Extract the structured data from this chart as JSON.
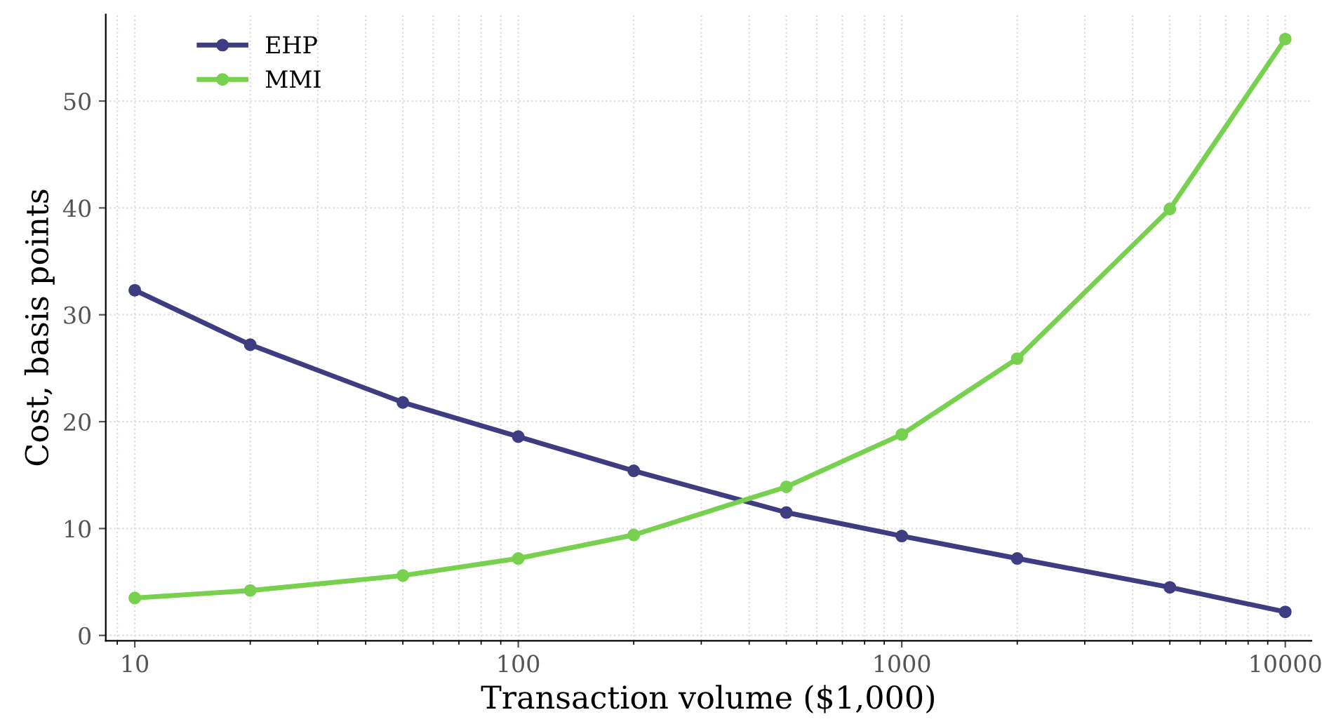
{
  "chart_data": {
    "type": "line",
    "xlabel": "Transaction volume ($1,000)",
    "ylabel": "Cost, basis points",
    "x": [
      10,
      20,
      50,
      100,
      200,
      500,
      1000,
      2000,
      5000,
      10000
    ],
    "series": [
      {
        "name": "EHP",
        "color": "#3f3d82",
        "values": [
          32.3,
          27.2,
          21.8,
          18.6,
          15.4,
          11.5,
          9.3,
          7.2,
          4.5,
          2.2
        ]
      },
      {
        "name": "MMI",
        "color": "#77d14f",
        "values": [
          3.5,
          4.2,
          5.6,
          7.2,
          9.4,
          13.9,
          18.8,
          25.9,
          39.9,
          55.8
        ]
      }
    ],
    "log": "x",
    "xlim": [
      8.4,
      11700
    ],
    "xticks": [
      10,
      100,
      1000,
      10000
    ],
    "ylim": [
      -0.5,
      58.1
    ],
    "yticks": [
      0,
      10,
      20,
      30,
      40,
      50
    ],
    "grid": true,
    "legend": "top left",
    "marker": "circle",
    "line_style": "solid"
  }
}
